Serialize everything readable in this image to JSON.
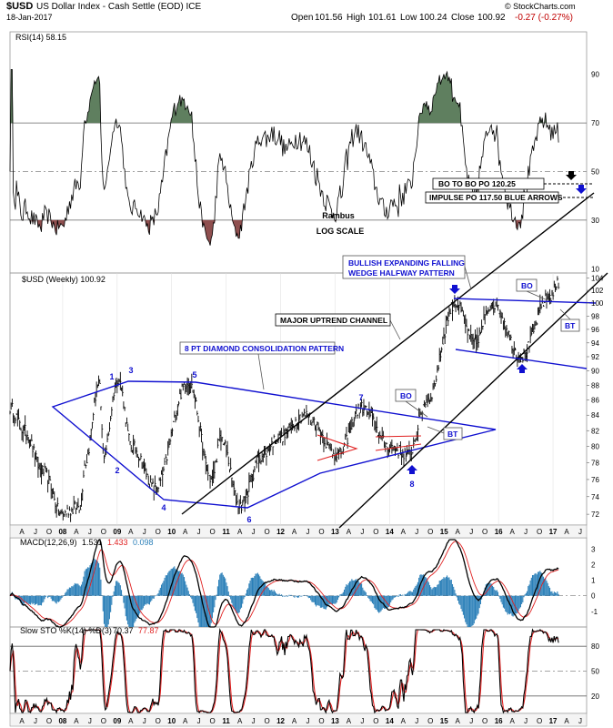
{
  "header": {
    "symbol": "$USD",
    "name": "US Dollar Index - Cash Settle (EOD) ICE",
    "date": "18-Jan-2017",
    "open_label": "Open",
    "open": "101.56",
    "high_label": "High",
    "high": "101.61",
    "low_label": "Low",
    "low": "100.24",
    "close_label": "Close",
    "close": "100.92",
    "change": "-0.27 (-0.27%)",
    "copyright": "© StockCharts.com"
  },
  "rsi_panel": {
    "label": "RSI(14) 58.15",
    "ticks": [
      "90",
      "70",
      "50",
      "30",
      "10"
    ],
    "overlay_text": [
      "Rambus",
      "LOG SCALE"
    ]
  },
  "price_panel": {
    "label": "$USD (Weekly) 100.92",
    "ticks": [
      "104",
      "102",
      "100",
      "98",
      "96",
      "94",
      "92",
      "90",
      "88",
      "86",
      "84",
      "82",
      "80",
      "78",
      "76",
      "74",
      "72"
    ]
  },
  "macd_panel": {
    "label": "MACD(12,26,9)",
    "v1": "1.531",
    "v2": "1.433",
    "v3": "0.098",
    "ticks": [
      "3",
      "2",
      "1",
      "0",
      "-1"
    ]
  },
  "sto_panel": {
    "label": "Slow STO %K(14) %D(3)",
    "v1": "70.37",
    "v2": "77.87",
    "ticks": [
      "80",
      "50",
      "20"
    ]
  },
  "x_axis": {
    "labels": [
      "A",
      "J",
      "O",
      "08",
      "A",
      "J",
      "O",
      "09",
      "A",
      "J",
      "O",
      "10",
      "A",
      "J",
      "O",
      "11",
      "A",
      "J",
      "O",
      "12",
      "A",
      "J",
      "O",
      "13",
      "A",
      "J",
      "O",
      "14",
      "A",
      "J",
      "O",
      "15",
      "A",
      "J",
      "O",
      "16",
      "A",
      "J",
      "O",
      "17",
      "A",
      "J"
    ]
  },
  "annotations": {
    "bo_to_bo": "BO TO BO PO 120.25",
    "impulse": "IMPULSE PO 117.50 BLUE ARROWS",
    "wedge_line1": "BULLISH EXPANDING FALLING",
    "wedge_line2": "WEDGE HALFWAY PATTERN",
    "uptrend": "MAJOR UPTREND CHANNEL",
    "diamond": "8 PT DIAMOND CONSOLIDATION PATTERN",
    "bo": "BO",
    "bt": "BT",
    "points": [
      "1",
      "2",
      "3",
      "4",
      "5",
      "6",
      "7",
      "8"
    ]
  },
  "chart_data": {
    "type": "line",
    "frequency": "weekly",
    "x_start": "2007-04",
    "x_end": "2017-07",
    "price_ylim": [
      71,
      104.5
    ],
    "price_scale": "log",
    "price_pivots": [
      {
        "date": "2007-04",
        "value": 85
      },
      {
        "date": "2007-07",
        "value": 82
      },
      {
        "date": "2007-11",
        "value": 77
      },
      {
        "date": "2008-03",
        "value": 72
      },
      {
        "date": "2008-05",
        "value": 72.5
      },
      {
        "date": "2008-07",
        "value": 73
      },
      {
        "date": "2008-08",
        "value": 78
      },
      {
        "date": "2008-11",
        "value": 88
      },
      {
        "date": "2008-12",
        "value": 79
      },
      {
        "date": "2009-03",
        "value": 89
      },
      {
        "date": "2009-06",
        "value": 80
      },
      {
        "date": "2009-11",
        "value": 75
      },
      {
        "date": "2010-06",
        "value": 88.5
      },
      {
        "date": "2010-11",
        "value": 76
      },
      {
        "date": "2011-01",
        "value": 81
      },
      {
        "date": "2011-05",
        "value": 73
      },
      {
        "date": "2011-10",
        "value": 79
      },
      {
        "date": "2012-01",
        "value": 81
      },
      {
        "date": "2012-07",
        "value": 84
      },
      {
        "date": "2013-02",
        "value": 79
      },
      {
        "date": "2013-07",
        "value": 85
      },
      {
        "date": "2014-01",
        "value": 80
      },
      {
        "date": "2014-05",
        "value": 79
      },
      {
        "date": "2014-09",
        "value": 86
      },
      {
        "date": "2015-03",
        "value": 100
      },
      {
        "date": "2015-07",
        "value": 94
      },
      {
        "date": "2015-11",
        "value": 100
      },
      {
        "date": "2016-05",
        "value": 92
      },
      {
        "date": "2016-11",
        "value": 101
      },
      {
        "date": "2017-01",
        "value": 103
      },
      {
        "date": "2017-01-18",
        "value": 100.92
      }
    ],
    "rsi_ylim": [
      0,
      100
    ],
    "rsi_levels": [
      70,
      50,
      30
    ],
    "macd_ylim": [
      -2,
      3.6
    ],
    "sto_ylim": [
      0,
      100
    ],
    "sto_levels": [
      80,
      50,
      20
    ],
    "grid": false
  },
  "colors": {
    "price": "#000000",
    "pattern_lines": "#1010d0",
    "channel": "#000000",
    "triangles": "#e02020",
    "macd_signal": "#e02020",
    "macd_hist": "#2a7fb8",
    "rsi_fill": "#5f7f5f",
    "rsi_fill_low": "#8f4f4f"
  }
}
